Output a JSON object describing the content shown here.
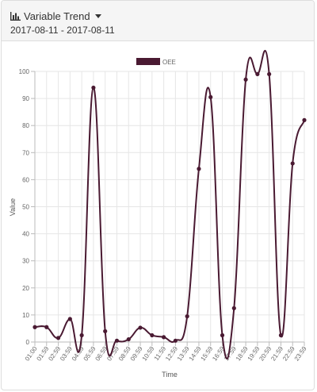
{
  "header": {
    "title": "Variable Trend",
    "icon": "bar-chart-icon",
    "date_range": "2017-08-11 - 2017-08-11"
  },
  "colors": {
    "series": "#4a1a32",
    "grid": "#e6e6e6",
    "axis": "#bbbbbb"
  },
  "chart_data": {
    "type": "line",
    "title": "",
    "xlabel": "Time",
    "ylabel": "Value",
    "ylim": [
      0,
      100
    ],
    "yticks": [
      0,
      10,
      20,
      30,
      40,
      50,
      60,
      70,
      80,
      90,
      100
    ],
    "grid": true,
    "legend_position": "top-center",
    "categories": [
      "01:00",
      "01:59",
      "02:59",
      "03:59",
      "04:59",
      "05:59",
      "06:59",
      "07:59",
      "08:59",
      "09:59",
      "10:59",
      "11:59",
      "12:59",
      "13:59",
      "14:59",
      "15:59",
      "16:59",
      "17:59",
      "18:59",
      "19:59",
      "20:59",
      "21:59",
      "22:59",
      "23:59"
    ],
    "series": [
      {
        "name": "OEE",
        "values": [
          5.5,
          5.5,
          1.5,
          8.5,
          2.5,
          94,
          4,
          0.5,
          1,
          5.3,
          2.5,
          1.8,
          0.5,
          9.5,
          64,
          90.5,
          2.5,
          12.5,
          97,
          99,
          99,
          2.5,
          66,
          82
        ]
      }
    ]
  }
}
